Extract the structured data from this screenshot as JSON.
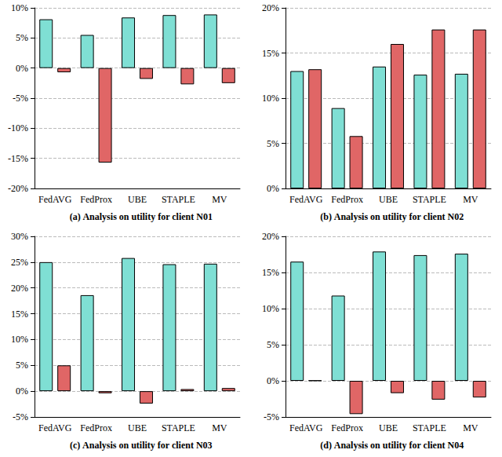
{
  "chart_data": [
    {
      "type": "bar",
      "title": "(a) Analysis on utility for client N01",
      "categories": [
        "FedAVG",
        "FedProx",
        "UBE",
        "STAPLE",
        "MV"
      ],
      "series": [
        {
          "color": "#7fdfd4",
          "values": [
            8.1,
            5.5,
            8.4,
            8.8,
            8.9
          ]
        },
        {
          "color": "#e06666",
          "values": [
            -0.7,
            -15.7,
            -1.8,
            -2.7,
            -2.5
          ]
        }
      ],
      "ylim": [
        -20,
        10
      ],
      "yticks": [
        {
          "value": -20,
          "label": "-20%"
        },
        {
          "value": -15,
          "label": "-15%"
        },
        {
          "value": -10,
          "label": "-10%"
        },
        {
          "value": -5,
          "label": "-5%"
        },
        {
          "value": 0,
          "label": "0%"
        },
        {
          "value": 5,
          "label": "5%"
        },
        {
          "value": 10,
          "label": "10%"
        }
      ],
      "grid": true
    },
    {
      "type": "bar",
      "title": "(b) Analysis on utility for client N02",
      "categories": [
        "FedAVG",
        "FedProx",
        "UBE",
        "STAPLE",
        "MV"
      ],
      "series": [
        {
          "color": "#7fdfd4",
          "values": [
            13.0,
            8.9,
            13.5,
            12.6,
            12.7
          ]
        },
        {
          "color": "#e06666",
          "values": [
            13.2,
            5.8,
            16.0,
            17.6,
            17.6
          ]
        }
      ],
      "ylim": [
        0,
        20
      ],
      "yticks": [
        {
          "value": 0,
          "label": "0%"
        },
        {
          "value": 5,
          "label": "5%"
        },
        {
          "value": 10,
          "label": "10%"
        },
        {
          "value": 15,
          "label": "15%"
        },
        {
          "value": 20,
          "label": "20%"
        }
      ],
      "grid": true
    },
    {
      "type": "bar",
      "title": "(c) Analysis on utility for client N03",
      "categories": [
        "FedAVG",
        "FedProx",
        "UBE",
        "STAPLE",
        "MV"
      ],
      "series": [
        {
          "color": "#7fdfd4",
          "values": [
            25.0,
            18.6,
            25.8,
            24.6,
            24.7
          ]
        },
        {
          "color": "#e06666",
          "values": [
            5.0,
            -0.4,
            -2.4,
            0.4,
            0.6
          ]
        }
      ],
      "ylim": [
        -5,
        30
      ],
      "yticks": [
        {
          "value": -5,
          "label": "-5%"
        },
        {
          "value": 0,
          "label": "0%"
        },
        {
          "value": 5,
          "label": "5%"
        },
        {
          "value": 10,
          "label": "10%"
        },
        {
          "value": 15,
          "label": "15%"
        },
        {
          "value": 20,
          "label": "20%"
        },
        {
          "value": 25,
          "label": "25%"
        },
        {
          "value": 30,
          "label": "30%"
        }
      ],
      "grid": true
    },
    {
      "type": "bar",
      "title": "(d) Analysis on utility for client N04",
      "categories": [
        "FedAVG",
        "FedProx",
        "UBE",
        "STAPLE",
        "MV"
      ],
      "series": [
        {
          "color": "#7fdfd4",
          "values": [
            16.5,
            11.8,
            17.9,
            17.4,
            17.6
          ]
        },
        {
          "color": "#e06666",
          "values": [
            0.05,
            -4.6,
            -1.7,
            -2.6,
            -2.3
          ]
        }
      ],
      "ylim": [
        -5,
        20
      ],
      "yticks": [
        {
          "value": -5,
          "label": "-5%"
        },
        {
          "value": 0,
          "label": "0%"
        },
        {
          "value": 5,
          "label": "5%"
        },
        {
          "value": 10,
          "label": "10%"
        },
        {
          "value": 15,
          "label": "15%"
        },
        {
          "value": 20,
          "label": "20%"
        }
      ],
      "grid": true
    }
  ]
}
